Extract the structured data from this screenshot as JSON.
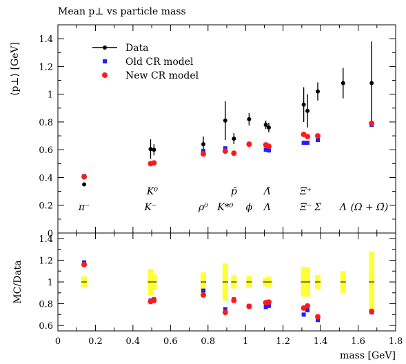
{
  "chart_data": [
    {
      "type": "scatter",
      "title": "Mean p⊥ vs particle mass",
      "ylabel": "⟨p⊥⟩ [GeV]",
      "xlim": [
        0,
        1.8
      ],
      "ylim": [
        0,
        1.5
      ],
      "yticks": [
        "0",
        "0.2",
        "0.4",
        "0.6",
        "0.8",
        "1",
        "1.2",
        "1.4"
      ],
      "legend_position": "top-left",
      "series": [
        {
          "name": "Data",
          "color": "#000000",
          "marker": "circle-with-errorbar",
          "points": [
            {
              "x": 0.14,
              "y": 0.35,
              "err": 0.0
            },
            {
              "x": 0.494,
              "y": 0.605,
              "err": 0.07
            },
            {
              "x": 0.512,
              "y": 0.6,
              "err": 0.04
            },
            {
              "x": 0.775,
              "y": 0.64,
              "err": 0.055
            },
            {
              "x": 0.892,
              "y": 0.81,
              "err": 0.14
            },
            {
              "x": 0.938,
              "y": 0.68,
              "err": 0.04
            },
            {
              "x": 1.019,
              "y": 0.82,
              "err": 0.045
            },
            {
              "x": 1.108,
              "y": 0.78,
              "err": 0.03
            },
            {
              "x": 1.124,
              "y": 0.76,
              "err": 0.035
            },
            {
              "x": 1.31,
              "y": 0.925,
              "err": 0.125
            },
            {
              "x": 1.33,
              "y": 0.88,
              "err": 0.12
            },
            {
              "x": 1.385,
              "y": 1.02,
              "err": 0.065
            },
            {
              "x": 1.52,
              "y": 1.08,
              "err": 0.11
            },
            {
              "x": 1.672,
              "y": 1.08,
              "err": 0.3
            }
          ]
        },
        {
          "name": "Old CR model",
          "color": "#1f1fff",
          "marker": "square",
          "points": [
            {
              "x": 0.14,
              "y": 0.41
            },
            {
              "x": 0.494,
              "y": 0.5
            },
            {
              "x": 0.512,
              "y": 0.505
            },
            {
              "x": 0.775,
              "y": 0.59
            },
            {
              "x": 0.892,
              "y": 0.61
            },
            {
              "x": 0.938,
              "y": 0.575
            },
            {
              "x": 1.019,
              "y": 0.64
            },
            {
              "x": 1.108,
              "y": 0.6
            },
            {
              "x": 1.124,
              "y": 0.595
            },
            {
              "x": 1.31,
              "y": 0.65
            },
            {
              "x": 1.33,
              "y": 0.65
            },
            {
              "x": 1.385,
              "y": 0.67
            },
            {
              "x": 1.672,
              "y": 0.78
            }
          ]
        },
        {
          "name": "New CR model",
          "color": "#ff1a1a",
          "marker": "circle",
          "points": [
            {
              "x": 0.14,
              "y": 0.405
            },
            {
              "x": 0.494,
              "y": 0.5
            },
            {
              "x": 0.512,
              "y": 0.505
            },
            {
              "x": 0.775,
              "y": 0.57
            },
            {
              "x": 0.892,
              "y": 0.59
            },
            {
              "x": 0.938,
              "y": 0.575
            },
            {
              "x": 1.019,
              "y": 0.64
            },
            {
              "x": 1.108,
              "y": 0.635
            },
            {
              "x": 1.124,
              "y": 0.625
            },
            {
              "x": 1.31,
              "y": 0.71
            },
            {
              "x": 1.33,
              "y": 0.695
            },
            {
              "x": 1.385,
              "y": 0.7
            },
            {
              "x": 1.672,
              "y": 0.79
            }
          ]
        }
      ],
      "particle_labels": [
        {
          "text": "π⁻",
          "x": 0.14,
          "row": "lower"
        },
        {
          "text": "K⁰",
          "x": 0.503,
          "row": "upper"
        },
        {
          "text": "K⁻",
          "x": 0.494,
          "row": "lower"
        },
        {
          "text": "ρ⁰",
          "x": 0.775,
          "row": "lower"
        },
        {
          "text": "p̄",
          "x": 0.938,
          "row": "upper"
        },
        {
          "text": "K*⁰",
          "x": 0.892,
          "row": "lower"
        },
        {
          "text": "ϕ",
          "x": 1.019,
          "row": "lower"
        },
        {
          "text": "Λ̄",
          "x": 1.116,
          "row": "upper"
        },
        {
          "text": "Λ",
          "x": 1.116,
          "row": "lower"
        },
        {
          "text": "Ξ̄⁺",
          "x": 1.321,
          "row": "upper"
        },
        {
          "text": "Ξ⁻",
          "x": 1.321,
          "row": "lower"
        },
        {
          "text": "Σ",
          "x": 1.385,
          "row": "lower"
        },
        {
          "text": "Λ",
          "x": 1.52,
          "row": "lower"
        },
        {
          "text": "(Ω + Ω̄)",
          "x": 1.66,
          "row": "lower"
        }
      ]
    },
    {
      "type": "scatter",
      "title": "",
      "ylabel": "MC/Data",
      "xlabel": "mass [GeV]",
      "xlim": [
        0,
        1.8
      ],
      "ylim": [
        0.55,
        1.45
      ],
      "xticks": [
        "0",
        "0.2",
        "0.4",
        "0.6",
        "0.8",
        "1",
        "1.2",
        "1.4",
        "1.6",
        "1.8"
      ],
      "yticks": [
        "0.6",
        "0.8",
        "1",
        "1.2",
        "1.4"
      ],
      "band_color": "#ffff33",
      "bands": [
        {
          "x": 0.14,
          "half": 0.05
        },
        {
          "x": 0.494,
          "half": 0.12
        },
        {
          "x": 0.512,
          "half": 0.07
        },
        {
          "x": 0.775,
          "half": 0.09
        },
        {
          "x": 0.892,
          "half": 0.17
        },
        {
          "x": 0.938,
          "half": 0.06
        },
        {
          "x": 1.019,
          "half": 0.055
        },
        {
          "x": 1.108,
          "half": 0.04
        },
        {
          "x": 1.124,
          "half": 0.05
        },
        {
          "x": 1.31,
          "half": 0.135
        },
        {
          "x": 1.33,
          "half": 0.135
        },
        {
          "x": 1.385,
          "half": 0.065
        },
        {
          "x": 1.52,
          "half": 0.1
        },
        {
          "x": 1.672,
          "half": 0.28
        }
      ],
      "series": [
        {
          "name": "Old CR model",
          "color": "#1f1fff",
          "marker": "square",
          "points": [
            {
              "x": 0.14,
              "y": 1.18
            },
            {
              "x": 0.494,
              "y": 0.83
            },
            {
              "x": 0.512,
              "y": 0.84
            },
            {
              "x": 0.775,
              "y": 0.92
            },
            {
              "x": 0.892,
              "y": 0.75
            },
            {
              "x": 0.938,
              "y": 0.84
            },
            {
              "x": 1.019,
              "y": 0.78
            },
            {
              "x": 1.108,
              "y": 0.77
            },
            {
              "x": 1.124,
              "y": 0.78
            },
            {
              "x": 1.31,
              "y": 0.7
            },
            {
              "x": 1.33,
              "y": 0.74
            },
            {
              "x": 1.385,
              "y": 0.65
            },
            {
              "x": 1.672,
              "y": 0.72
            }
          ]
        },
        {
          "name": "New CR model",
          "color": "#ff1a1a",
          "marker": "circle",
          "points": [
            {
              "x": 0.14,
              "y": 1.16
            },
            {
              "x": 0.494,
              "y": 0.82
            },
            {
              "x": 0.512,
              "y": 0.83
            },
            {
              "x": 0.775,
              "y": 0.88
            },
            {
              "x": 0.892,
              "y": 0.72
            },
            {
              "x": 0.938,
              "y": 0.83
            },
            {
              "x": 1.019,
              "y": 0.775
            },
            {
              "x": 1.108,
              "y": 0.81
            },
            {
              "x": 1.124,
              "y": 0.815
            },
            {
              "x": 1.31,
              "y": 0.76
            },
            {
              "x": 1.33,
              "y": 0.78
            },
            {
              "x": 1.385,
              "y": 0.68
            },
            {
              "x": 1.672,
              "y": 0.73
            }
          ]
        }
      ]
    }
  ]
}
